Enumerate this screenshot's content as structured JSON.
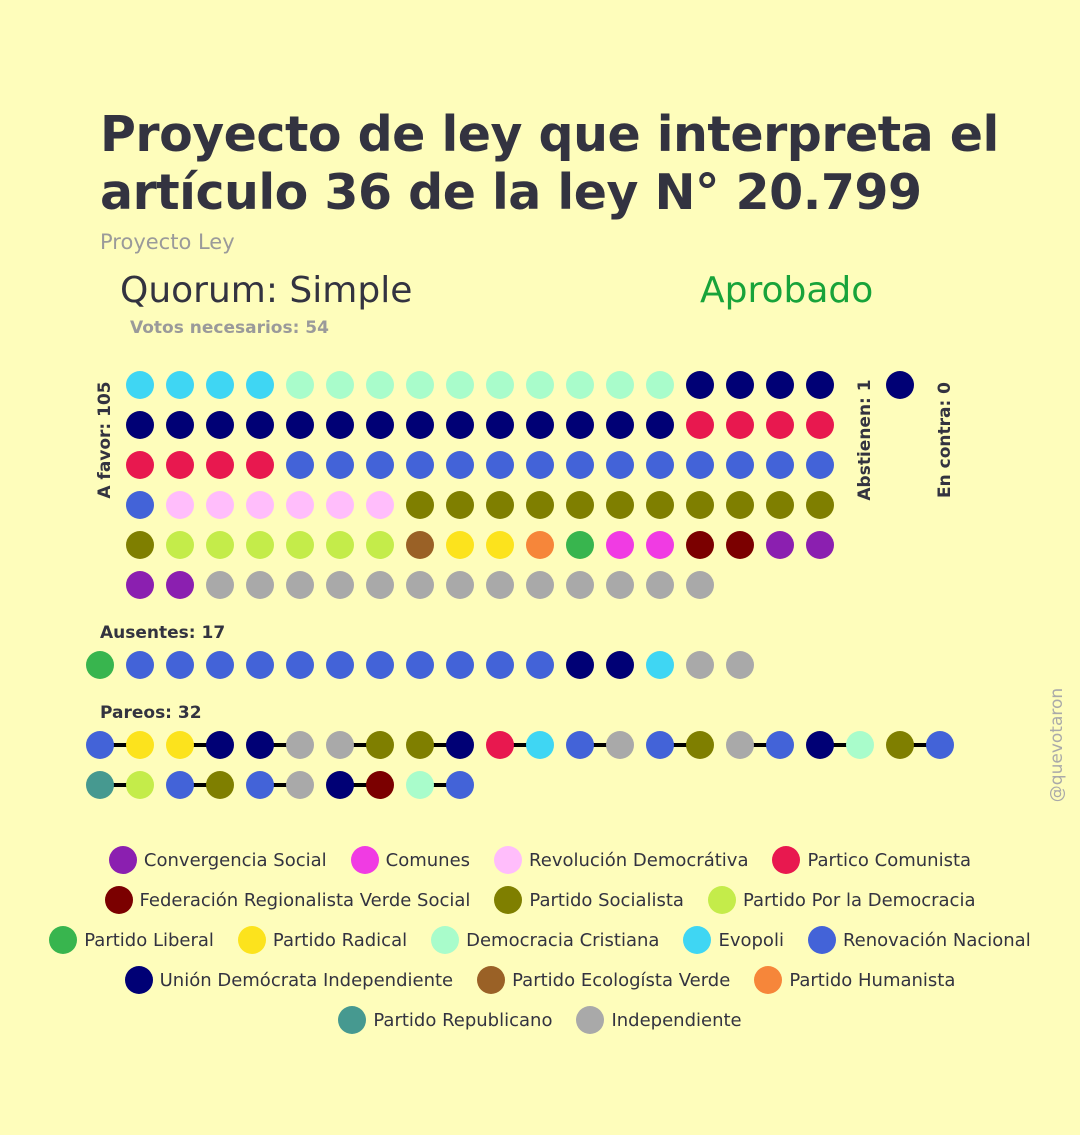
{
  "title": "Proyecto de ley que interpreta el artículo 36 de la ley N° 20.799",
  "subtitle": "Proyecto Ley",
  "quorum": "Quorum: Simple",
  "status": "Aprobado",
  "votes_needed": "Votos necesarios: 54",
  "watermark": "@quevotaron",
  "colors": {
    "background": "#FEFDBB",
    "status": "#18A33A"
  },
  "parties": [
    {
      "key": "CS",
      "name": "Convergencia Social",
      "color": "#8B1FB0"
    },
    {
      "key": "COM",
      "name": "Comunes",
      "color": "#F03BE3"
    },
    {
      "key": "RD",
      "name": "Revolución Democrátiva",
      "color": "#FFBDFB"
    },
    {
      "key": "PC",
      "name": "Partico Comunista",
      "color": "#E8184F"
    },
    {
      "key": "FRVS",
      "name": "Federación Regionalista Verde Social",
      "color": "#7B0000"
    },
    {
      "key": "PS",
      "name": "Partido Socialista",
      "color": "#7F7F00"
    },
    {
      "key": "PPD",
      "name": "Partido Por la Democracia",
      "color": "#C4EC4A"
    },
    {
      "key": "PL",
      "name": "Partido Liberal",
      "color": "#38B54E"
    },
    {
      "key": "PR",
      "name": "Partido Radical",
      "color": "#FCE31D"
    },
    {
      "key": "DC",
      "name": "Democracia Cristiana",
      "color": "#A9FCCB"
    },
    {
      "key": "EVO",
      "name": "Evopoli",
      "color": "#3FD6F3"
    },
    {
      "key": "RN",
      "name": "Renovación Nacional",
      "color": "#4363D8"
    },
    {
      "key": "UDI",
      "name": "Unión Demócrata Independiente",
      "color": "#000075"
    },
    {
      "key": "PEV",
      "name": "Partido Ecologísta Verde",
      "color": "#9A6126"
    },
    {
      "key": "PH",
      "name": "Partido Humanista",
      "color": "#F6863A"
    },
    {
      "key": "REP",
      "name": "Partido Republicano",
      "color": "#469990"
    },
    {
      "key": "IND",
      "name": "Independiente",
      "color": "#A9A9A9"
    }
  ],
  "chart_data": {
    "type": "dot-matrix",
    "groups": [
      {
        "label": "A favor: 105",
        "count": 105,
        "members": [
          "EVO",
          "EVO",
          "EVO",
          "EVO",
          "DC",
          "DC",
          "DC",
          "DC",
          "DC",
          "DC",
          "DC",
          "DC",
          "DC",
          "DC",
          "UDI",
          "UDI",
          "UDI",
          "UDI",
          "UDI",
          "UDI",
          "UDI",
          "UDI",
          "UDI",
          "UDI",
          "UDI",
          "UDI",
          "UDI",
          "UDI",
          "UDI",
          "UDI",
          "UDI",
          "UDI",
          "PC",
          "PC",
          "PC",
          "PC",
          "PC",
          "PC",
          "PC",
          "PC",
          "RN",
          "RN",
          "RN",
          "RN",
          "RN",
          "RN",
          "RN",
          "RN",
          "RN",
          "RN",
          "RN",
          "RN",
          "RN",
          "RN",
          "RN",
          "RD",
          "RD",
          "RD",
          "RD",
          "RD",
          "RD",
          "PS",
          "PS",
          "PS",
          "PS",
          "PS",
          "PS",
          "PS",
          "PS",
          "PS",
          "PS",
          "PS",
          "PS",
          "PPD",
          "PPD",
          "PPD",
          "PPD",
          "PPD",
          "PPD",
          "PEV",
          "PR",
          "PR",
          "PH",
          "PL",
          "COM",
          "COM",
          "FRVS",
          "FRVS",
          "CS",
          "CS",
          "CS",
          "CS",
          "IND",
          "IND",
          "IND",
          "IND",
          "IND",
          "IND",
          "IND",
          "IND",
          "IND",
          "IND",
          "IND",
          "IND",
          "IND"
        ]
      },
      {
        "label": "Abstienen: 1",
        "count": 1,
        "members": [
          "UDI"
        ]
      },
      {
        "label": "En contra: 0",
        "count": 0,
        "members": []
      },
      {
        "label": "Ausentes: 17",
        "count": 17,
        "members": [
          "PL",
          "RN",
          "RN",
          "RN",
          "RN",
          "RN",
          "RN",
          "RN",
          "RN",
          "RN",
          "RN",
          "RN",
          "UDI",
          "UDI",
          "EVO",
          "IND",
          "IND"
        ]
      },
      {
        "label": "Pareos: 32",
        "count": 32,
        "pairs": [
          [
            "RN",
            "PR"
          ],
          [
            "PR",
            "UDI"
          ],
          [
            "UDI",
            "IND"
          ],
          [
            "IND",
            "PS"
          ],
          [
            "PS",
            "UDI"
          ],
          [
            "PC",
            "EVO"
          ],
          [
            "RN",
            "IND"
          ],
          [
            "RN",
            "PS"
          ],
          [
            "IND",
            "RN"
          ],
          [
            "UDI",
            "DC"
          ],
          [
            "PS",
            "RN"
          ],
          [
            "REP",
            "PPD"
          ],
          [
            "RN",
            "PS"
          ],
          [
            "RN",
            "IND"
          ],
          [
            "UDI",
            "FRVS"
          ],
          [
            "DC",
            "RN"
          ]
        ]
      }
    ]
  }
}
